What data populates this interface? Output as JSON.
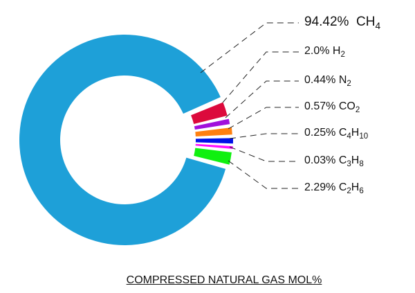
{
  "chart_data": {
    "type": "pie",
    "style": "donut",
    "title": "COMPRESSED NATURAL GAS  MOL%",
    "slices": [
      {
        "name": "CH4",
        "label": "94.42%",
        "value": 94.42,
        "color": "#1ea0d8"
      },
      {
        "name": "H2",
        "label": "2.0%",
        "value": 2.0,
        "color": "#dc0a3c"
      },
      {
        "name": "N2",
        "label": "0.44%",
        "value": 0.44,
        "color": "#a010dc"
      },
      {
        "name": "CO2",
        "label": "0.57%",
        "value": 0.57,
        "color": "#ff8010"
      },
      {
        "name": "C4H10",
        "label": "0.25%",
        "value": 0.25,
        "color": "#0010e8"
      },
      {
        "name": "C3H8",
        "label": "0.03%",
        "value": 0.03,
        "color": "#ff10ff"
      },
      {
        "name": "C2H6",
        "label": "2.29%",
        "value": 2.29,
        "color": "#10f010"
      }
    ],
    "legend": "right"
  }
}
